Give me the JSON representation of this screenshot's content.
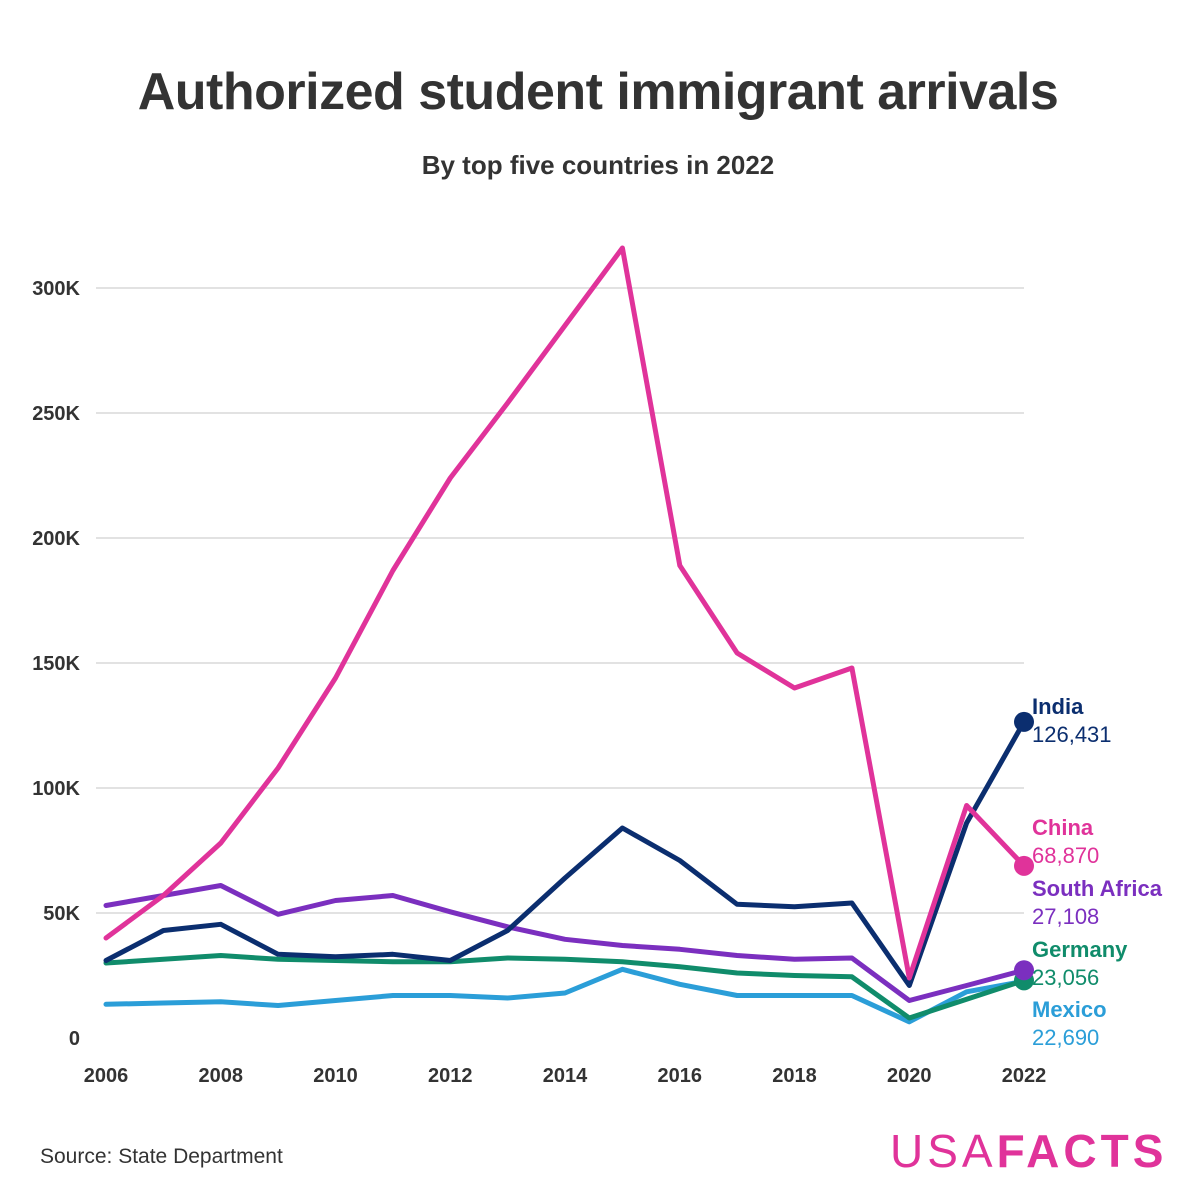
{
  "title": "Authorized student immigrant arrivals",
  "subtitle": "By top five countries in 2022",
  "source": "Source: State Department",
  "logo": {
    "part1": "USA",
    "part2": "FACTS",
    "color": "#e0339a"
  },
  "chart_data": {
    "type": "line",
    "title": "Authorized student immigrant arrivals",
    "subtitle": "By top five countries in 2022",
    "xlabel": "",
    "ylabel": "",
    "x": [
      2006,
      2007,
      2008,
      2009,
      2010,
      2011,
      2012,
      2013,
      2014,
      2015,
      2016,
      2017,
      2018,
      2019,
      2020,
      2021,
      2022
    ],
    "x_ticks": [
      "2006",
      "2008",
      "2010",
      "2012",
      "2014",
      "2016",
      "2018",
      "2020",
      "2022"
    ],
    "y_ticks": [
      "0",
      "50K",
      "100K",
      "150K",
      "200K",
      "250K",
      "300K"
    ],
    "ylim": [
      0,
      320000
    ],
    "grid": true,
    "legend": "end-of-line labels",
    "series": [
      {
        "name": "China",
        "color": "#e0339a",
        "label_value": "68,870",
        "values": [
          40000,
          57000,
          78000,
          108000,
          144000,
          187000,
          224000,
          254000,
          285000,
          316000,
          189000,
          154000,
          140000,
          148000,
          24000,
          93000,
          68870
        ]
      },
      {
        "name": "India",
        "color": "#0b2e6f",
        "label_value": "126,431",
        "values": [
          31000,
          43000,
          45500,
          33500,
          32500,
          33500,
          31000,
          43000,
          64000,
          84000,
          71000,
          53500,
          52500,
          54000,
          21000,
          86000,
          126431
        ]
      },
      {
        "name": "South Africa",
        "color": "#7b2fbf",
        "label_value": "27,108",
        "values": [
          53000,
          57000,
          61000,
          49500,
          55000,
          57000,
          50500,
          44500,
          39500,
          37000,
          35500,
          33000,
          31500,
          32000,
          15000,
          21000,
          27108
        ]
      },
      {
        "name": "Germany",
        "color": "#108c6b",
        "label_value": "23,056",
        "values": [
          30000,
          31500,
          33000,
          31500,
          31000,
          30500,
          30500,
          32000,
          31500,
          30500,
          28500,
          26000,
          25000,
          24500,
          8000,
          15500,
          23056
        ]
      },
      {
        "name": "Mexico",
        "color": "#2b9ed8",
        "label_value": "22,690",
        "values": [
          13500,
          14000,
          14500,
          13000,
          15000,
          17000,
          17000,
          16000,
          18000,
          27500,
          21500,
          17000,
          17000,
          17000,
          6500,
          18500,
          22690
        ]
      }
    ]
  }
}
